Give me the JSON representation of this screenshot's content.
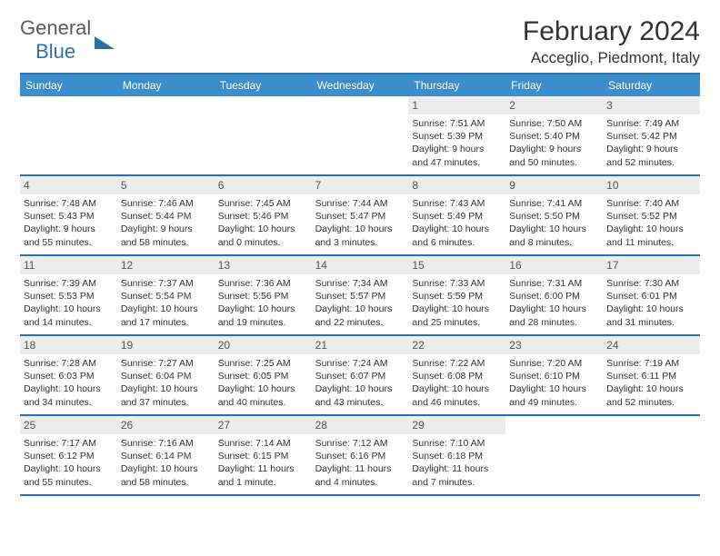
{
  "logo": {
    "text1": "General",
    "text2": "Blue"
  },
  "title": "February 2024",
  "location": "Acceglio, Piedmont, Italy",
  "dayNames": [
    "Sunday",
    "Monday",
    "Tuesday",
    "Wednesday",
    "Thursday",
    "Friday",
    "Saturday"
  ],
  "colors": {
    "headerBg": "#3c8dcc",
    "headerBorder": "#2f6fa8",
    "dayNumBg": "#ececec",
    "text": "#333333",
    "logoGray": "#5a5a5a",
    "logoBlue": "#2f6fa8"
  },
  "layout": {
    "cols": 7,
    "rows": 5,
    "firstDayOffset": 4
  },
  "days": [
    {
      "n": "1",
      "sunrise": "7:51 AM",
      "sunset": "5:39 PM",
      "daylight": "9 hours and 47 minutes."
    },
    {
      "n": "2",
      "sunrise": "7:50 AM",
      "sunset": "5:40 PM",
      "daylight": "9 hours and 50 minutes."
    },
    {
      "n": "3",
      "sunrise": "7:49 AM",
      "sunset": "5:42 PM",
      "daylight": "9 hours and 52 minutes."
    },
    {
      "n": "4",
      "sunrise": "7:48 AM",
      "sunset": "5:43 PM",
      "daylight": "9 hours and 55 minutes."
    },
    {
      "n": "5",
      "sunrise": "7:46 AM",
      "sunset": "5:44 PM",
      "daylight": "9 hours and 58 minutes."
    },
    {
      "n": "6",
      "sunrise": "7:45 AM",
      "sunset": "5:46 PM",
      "daylight": "10 hours and 0 minutes."
    },
    {
      "n": "7",
      "sunrise": "7:44 AM",
      "sunset": "5:47 PM",
      "daylight": "10 hours and 3 minutes."
    },
    {
      "n": "8",
      "sunrise": "7:43 AM",
      "sunset": "5:49 PM",
      "daylight": "10 hours and 6 minutes."
    },
    {
      "n": "9",
      "sunrise": "7:41 AM",
      "sunset": "5:50 PM",
      "daylight": "10 hours and 8 minutes."
    },
    {
      "n": "10",
      "sunrise": "7:40 AM",
      "sunset": "5:52 PM",
      "daylight": "10 hours and 11 minutes."
    },
    {
      "n": "11",
      "sunrise": "7:39 AM",
      "sunset": "5:53 PM",
      "daylight": "10 hours and 14 minutes."
    },
    {
      "n": "12",
      "sunrise": "7:37 AM",
      "sunset": "5:54 PM",
      "daylight": "10 hours and 17 minutes."
    },
    {
      "n": "13",
      "sunrise": "7:36 AM",
      "sunset": "5:56 PM",
      "daylight": "10 hours and 19 minutes."
    },
    {
      "n": "14",
      "sunrise": "7:34 AM",
      "sunset": "5:57 PM",
      "daylight": "10 hours and 22 minutes."
    },
    {
      "n": "15",
      "sunrise": "7:33 AM",
      "sunset": "5:59 PM",
      "daylight": "10 hours and 25 minutes."
    },
    {
      "n": "16",
      "sunrise": "7:31 AM",
      "sunset": "6:00 PM",
      "daylight": "10 hours and 28 minutes."
    },
    {
      "n": "17",
      "sunrise": "7:30 AM",
      "sunset": "6:01 PM",
      "daylight": "10 hours and 31 minutes."
    },
    {
      "n": "18",
      "sunrise": "7:28 AM",
      "sunset": "6:03 PM",
      "daylight": "10 hours and 34 minutes."
    },
    {
      "n": "19",
      "sunrise": "7:27 AM",
      "sunset": "6:04 PM",
      "daylight": "10 hours and 37 minutes."
    },
    {
      "n": "20",
      "sunrise": "7:25 AM",
      "sunset": "6:05 PM",
      "daylight": "10 hours and 40 minutes."
    },
    {
      "n": "21",
      "sunrise": "7:24 AM",
      "sunset": "6:07 PM",
      "daylight": "10 hours and 43 minutes."
    },
    {
      "n": "22",
      "sunrise": "7:22 AM",
      "sunset": "6:08 PM",
      "daylight": "10 hours and 46 minutes."
    },
    {
      "n": "23",
      "sunrise": "7:20 AM",
      "sunset": "6:10 PM",
      "daylight": "10 hours and 49 minutes."
    },
    {
      "n": "24",
      "sunrise": "7:19 AM",
      "sunset": "6:11 PM",
      "daylight": "10 hours and 52 minutes."
    },
    {
      "n": "25",
      "sunrise": "7:17 AM",
      "sunset": "6:12 PM",
      "daylight": "10 hours and 55 minutes."
    },
    {
      "n": "26",
      "sunrise": "7:16 AM",
      "sunset": "6:14 PM",
      "daylight": "10 hours and 58 minutes."
    },
    {
      "n": "27",
      "sunrise": "7:14 AM",
      "sunset": "6:15 PM",
      "daylight": "11 hours and 1 minute."
    },
    {
      "n": "28",
      "sunrise": "7:12 AM",
      "sunset": "6:16 PM",
      "daylight": "11 hours and 4 minutes."
    },
    {
      "n": "29",
      "sunrise": "7:10 AM",
      "sunset": "6:18 PM",
      "daylight": "11 hours and 7 minutes."
    }
  ],
  "labels": {
    "sunrise": "Sunrise: ",
    "sunset": "Sunset: ",
    "daylight": "Daylight: "
  }
}
